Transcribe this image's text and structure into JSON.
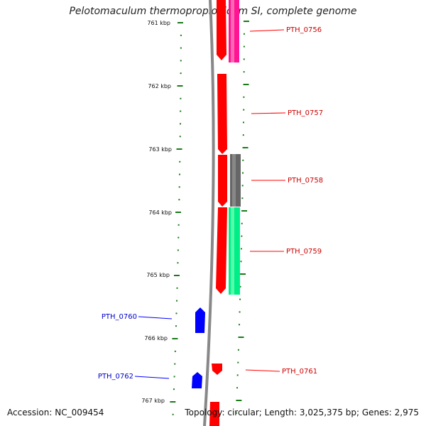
{
  "title": "Pelotomaculum thermopropionicum SI, complete genome",
  "footer": {
    "accession": "Accession: NC_009454",
    "summary": "Topology: circular; Length: 3,025,375 bp; Genes: 2,975"
  },
  "ticks": [
    "761 kbp",
    "762 kbp",
    "763 kbp",
    "764 kbp",
    "765 kbp",
    "766 kbp",
    "767 kbp"
  ],
  "genes": [
    {
      "label": "PTH_0756",
      "strand": "forward",
      "color": "#ff0000"
    },
    {
      "label": "PTH_0757",
      "strand": "forward",
      "color": "#ff0000"
    },
    {
      "label": "PTH_0758",
      "strand": "forward",
      "color": "#ff0000"
    },
    {
      "label": "PTH_0759",
      "strand": "forward",
      "color": "#ff0000"
    },
    {
      "label": "PTH_0760",
      "strand": "reverse",
      "color": "#0000ff"
    },
    {
      "label": "PTH_0761",
      "strand": "forward",
      "color": "#ff0000"
    },
    {
      "label": "PTH_0762",
      "strand": "reverse",
      "color": "#0000ff"
    }
  ],
  "colors": {
    "backbone": "#888888",
    "tick": "#1a7a1a",
    "forward": "#ff0000",
    "reverse": "#0000ff",
    "feature_pink": "#ff1493",
    "feature_gray": "#666666",
    "feature_green": "#00ee88"
  }
}
